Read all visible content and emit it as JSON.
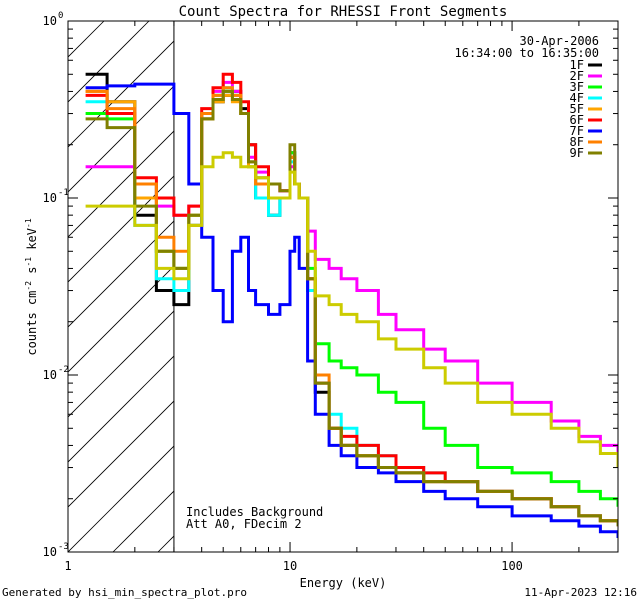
{
  "chart_data": {
    "type": "line",
    "title": "Count Spectra for RHESSI Front Segments",
    "xlabel": "Energy (keV)",
    "ylabel_parts": [
      "counts cm",
      "-2",
      " s",
      "-1",
      " keV",
      "-1"
    ],
    "xscale": "log",
    "yscale": "log",
    "xlim": [
      1.0,
      300.0
    ],
    "ylim": [
      0.001,
      1.0
    ],
    "x_tick_labels": [
      {
        "value": 1,
        "label": "1"
      },
      {
        "value": 10,
        "label": "10"
      },
      {
        "value": 100,
        "label": "100"
      }
    ],
    "y_tick_labels": [
      {
        "value": 1,
        "label": "10",
        "exp": "0"
      },
      {
        "value": 0.1,
        "label": "10",
        "exp": "-1"
      },
      {
        "value": 0.01,
        "label": "10",
        "exp": "-2"
      },
      {
        "value": 0.001,
        "label": "10",
        "exp": "-3"
      }
    ],
    "date": "30-Apr-2006",
    "time_range": "16:34:00 to 16:35:00",
    "annotations": [
      "Includes Background",
      "Att A0, FDecim 2"
    ],
    "attenuator_shade_xmax": 3.0,
    "series": [
      {
        "name": "1F",
        "color": "#000000",
        "x": [
          1.2,
          1.5,
          2.0,
          2.5,
          3.0,
          3.5,
          4.0,
          4.5,
          5.0,
          5.5,
          6.0,
          6.5,
          7.0,
          8.0,
          9.0,
          10.0,
          10.5,
          11.0,
          12.0,
          13.0,
          15.0,
          17.0,
          20.0,
          25.0,
          30.0,
          40.0,
          50.0,
          70.0,
          100.0,
          150.0,
          200.0,
          250.0,
          300.0
        ],
        "y": [
          0.5,
          0.35,
          0.08,
          0.03,
          0.025,
          0.07,
          0.28,
          0.35,
          0.38,
          0.4,
          0.32,
          0.2,
          0.1,
          0.08,
          0.1,
          0.18,
          0.12,
          0.1,
          0.03,
          0.008,
          0.005,
          0.004,
          0.0035,
          0.003,
          0.0028,
          0.0025,
          0.0025,
          0.0022,
          0.002,
          0.0018,
          0.0016,
          0.0015,
          0.0014
        ]
      },
      {
        "name": "2F",
        "color": "#ff00ff",
        "x": [
          1.2,
          1.5,
          2.0,
          2.5,
          3.0,
          3.5,
          4.0,
          4.5,
          5.0,
          5.5,
          6.0,
          6.5,
          7.0,
          8.0,
          9.0,
          10.0,
          10.5,
          11.0,
          12.0,
          13.0,
          15.0,
          17.0,
          20.0,
          25.0,
          30.0,
          40.0,
          50.0,
          70.0,
          100.0,
          150.0,
          200.0,
          250.0,
          300.0
        ],
        "y": [
          0.15,
          0.15,
          0.12,
          0.09,
          0.08,
          0.09,
          0.3,
          0.4,
          0.45,
          0.4,
          0.3,
          0.17,
          0.14,
          0.12,
          0.11,
          0.15,
          0.12,
          0.1,
          0.065,
          0.045,
          0.04,
          0.035,
          0.03,
          0.022,
          0.018,
          0.014,
          0.012,
          0.009,
          0.007,
          0.0055,
          0.0045,
          0.004,
          0.0035
        ]
      },
      {
        "name": "3F",
        "color": "#00ff00",
        "x": [
          1.2,
          1.5,
          2.0,
          2.5,
          3.0,
          3.5,
          4.0,
          4.5,
          5.0,
          5.5,
          6.0,
          6.5,
          7.0,
          8.0,
          9.0,
          10.0,
          10.5,
          11.0,
          12.0,
          13.0,
          15.0,
          17.0,
          20.0,
          25.0,
          30.0,
          40.0,
          50.0,
          70.0,
          100.0,
          150.0,
          200.0,
          250.0,
          300.0
        ],
        "y": [
          0.3,
          0.28,
          0.12,
          0.05,
          0.04,
          0.08,
          0.3,
          0.38,
          0.4,
          0.38,
          0.3,
          0.15,
          0.12,
          0.1,
          0.1,
          0.18,
          0.12,
          0.1,
          0.04,
          0.015,
          0.012,
          0.011,
          0.01,
          0.008,
          0.007,
          0.005,
          0.004,
          0.003,
          0.0028,
          0.0025,
          0.0022,
          0.002,
          0.0018
        ]
      },
      {
        "name": "4F",
        "color": "#00ffff",
        "x": [
          1.2,
          1.5,
          2.0,
          2.5,
          3.0,
          3.5,
          4.0,
          4.5,
          5.0,
          5.5,
          6.0,
          6.5,
          7.0,
          8.0,
          9.0,
          10.0,
          10.5,
          11.0,
          12.0,
          13.0,
          15.0,
          17.0,
          20.0,
          25.0,
          30.0,
          40.0,
          50.0,
          70.0,
          100.0,
          150.0,
          200.0,
          250.0,
          300.0
        ],
        "y": [
          0.35,
          0.3,
          0.07,
          0.035,
          0.03,
          0.07,
          0.3,
          0.38,
          0.42,
          0.38,
          0.3,
          0.16,
          0.1,
          0.08,
          0.1,
          0.16,
          0.12,
          0.1,
          0.03,
          0.009,
          0.006,
          0.005,
          0.004,
          0.0035,
          0.003,
          0.0028,
          0.0025,
          0.0022,
          0.002,
          0.0018,
          0.0016,
          0.0015,
          0.0014
        ]
      },
      {
        "name": "5F",
        "color": "#ffa500",
        "x": [
          1.2,
          1.5,
          2.0,
          2.5,
          3.0,
          3.5,
          4.0,
          4.5,
          5.0,
          5.5,
          6.0,
          6.5,
          7.0,
          8.0,
          9.0,
          10.0,
          10.5,
          11.0,
          12.0,
          13.0,
          15.0,
          17.0,
          20.0,
          25.0,
          30.0,
          40.0,
          50.0,
          70.0,
          100.0,
          150.0,
          200.0,
          250.0,
          300.0
        ],
        "y": [
          0.4,
          0.35,
          0.1,
          0.05,
          0.04,
          0.07,
          0.28,
          0.35,
          0.38,
          0.35,
          0.3,
          0.15,
          0.12,
          0.1,
          0.1,
          0.17,
          0.12,
          0.1,
          0.035,
          0.009,
          0.005,
          0.004,
          0.0035,
          0.003,
          0.0028,
          0.0025,
          0.0025,
          0.0022,
          0.002,
          0.0018,
          0.0016,
          0.0015,
          0.0014
        ]
      },
      {
        "name": "6F",
        "color": "#ff0000",
        "x": [
          1.2,
          1.5,
          2.0,
          2.5,
          3.0,
          3.5,
          4.0,
          4.5,
          5.0,
          5.5,
          6.0,
          6.5,
          7.0,
          8.0,
          9.0,
          10.0,
          10.5,
          11.0,
          12.0,
          13.0,
          15.0,
          17.0,
          20.0,
          25.0,
          30.0,
          40.0,
          50.0,
          70.0,
          100.0,
          150.0,
          200.0,
          250.0,
          300.0
        ],
        "y": [
          0.38,
          0.3,
          0.13,
          0.1,
          0.08,
          0.09,
          0.32,
          0.42,
          0.5,
          0.45,
          0.35,
          0.2,
          0.15,
          0.12,
          0.11,
          0.17,
          0.12,
          0.1,
          0.035,
          0.009,
          0.005,
          0.0045,
          0.004,
          0.0035,
          0.003,
          0.0028,
          0.0025,
          0.0022,
          0.002,
          0.0018,
          0.0016,
          0.0015,
          0.0014
        ]
      },
      {
        "name": "7F",
        "color": "#0000ff",
        "x": [
          1.2,
          1.5,
          2.0,
          2.5,
          3.0,
          3.5,
          4.0,
          4.5,
          5.0,
          5.5,
          6.0,
          6.5,
          7.0,
          8.0,
          9.0,
          10.0,
          10.5,
          11.0,
          12.0,
          13.0,
          15.0,
          17.0,
          20.0,
          25.0,
          30.0,
          40.0,
          50.0,
          70.0,
          100.0,
          150.0,
          200.0,
          250.0,
          300.0
        ],
        "y": [
          0.42,
          0.43,
          0.44,
          0.44,
          0.3,
          0.12,
          0.06,
          0.03,
          0.02,
          0.05,
          0.06,
          0.03,
          0.025,
          0.022,
          0.025,
          0.05,
          0.06,
          0.04,
          0.012,
          0.006,
          0.004,
          0.0035,
          0.003,
          0.0028,
          0.0025,
          0.0022,
          0.002,
          0.0018,
          0.0016,
          0.0015,
          0.0014,
          0.0013,
          0.0012
        ]
      },
      {
        "name": "8F",
        "color": "#ff8000",
        "x": [
          1.2,
          1.5,
          2.0,
          2.5,
          3.0,
          3.5,
          4.0,
          4.5,
          5.0,
          5.5,
          6.0,
          6.5,
          7.0,
          8.0,
          9.0,
          10.0,
          10.5,
          11.0,
          12.0,
          13.0,
          15.0,
          17.0,
          20.0,
          25.0,
          30.0,
          40.0,
          50.0,
          70.0,
          100.0,
          150.0,
          200.0,
          250.0,
          300.0
        ],
        "y": [
          0.4,
          0.32,
          0.12,
          0.06,
          0.05,
          0.08,
          0.3,
          0.38,
          0.42,
          0.38,
          0.3,
          0.16,
          0.12,
          0.1,
          0.1,
          0.17,
          0.12,
          0.1,
          0.035,
          0.01,
          0.005,
          0.004,
          0.0035,
          0.003,
          0.0028,
          0.0025,
          0.0025,
          0.0022,
          0.002,
          0.0018,
          0.0016,
          0.0015,
          0.0014
        ]
      },
      {
        "name": "9F",
        "color": "#808000",
        "x": [
          1.2,
          1.5,
          2.0,
          2.5,
          3.0,
          3.5,
          4.0,
          4.5,
          5.0,
          5.5,
          6.0,
          6.5,
          7.0,
          8.0,
          9.0,
          10.0,
          10.5,
          11.0,
          12.0,
          13.0,
          15.0,
          17.0,
          20.0,
          25.0,
          30.0,
          40.0,
          50.0,
          70.0,
          100.0,
          150.0,
          200.0,
          250.0,
          300.0
        ],
        "y": [
          0.28,
          0.25,
          0.09,
          0.05,
          0.04,
          0.08,
          0.28,
          0.36,
          0.4,
          0.36,
          0.3,
          0.16,
          0.13,
          0.12,
          0.11,
          0.2,
          0.12,
          0.1,
          0.035,
          0.009,
          0.005,
          0.004,
          0.0035,
          0.003,
          0.0028,
          0.0025,
          0.0025,
          0.0022,
          0.002,
          0.0018,
          0.0016,
          0.0015,
          0.0014
        ]
      },
      {
        "name": "",
        "color": "#cccc00",
        "x": [
          1.2,
          1.5,
          2.0,
          2.5,
          3.0,
          3.5,
          4.0,
          4.5,
          5.0,
          5.5,
          6.0,
          6.5,
          7.0,
          8.0,
          9.0,
          10.0,
          10.5,
          11.0,
          12.0,
          13.0,
          15.0,
          17.0,
          20.0,
          25.0,
          30.0,
          40.0,
          50.0,
          70.0,
          100.0,
          150.0,
          200.0,
          250.0,
          300.0
        ],
        "y": [
          0.09,
          0.09,
          0.07,
          0.04,
          0.035,
          0.07,
          0.15,
          0.17,
          0.18,
          0.17,
          0.15,
          0.15,
          0.13,
          0.1,
          0.1,
          0.14,
          0.12,
          0.1,
          0.05,
          0.028,
          0.025,
          0.022,
          0.02,
          0.016,
          0.014,
          0.011,
          0.009,
          0.007,
          0.006,
          0.005,
          0.0042,
          0.0036,
          0.003
        ]
      }
    ]
  },
  "footer": {
    "generator": "Generated by hsi_min_spectra_plot.pro",
    "timestamp": "11-Apr-2023 12:16"
  }
}
